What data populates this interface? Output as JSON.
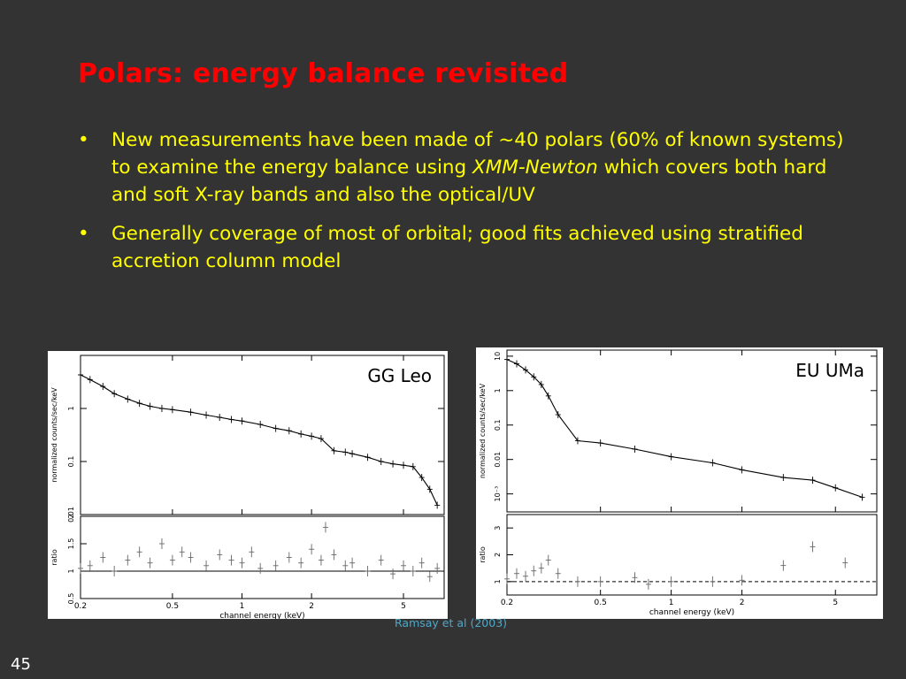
{
  "slide": {
    "title": "Polars: energy balance revisited",
    "bullet1_pre": "New measurements have been made of ~40 polars (60% of known systems) to examine the energy balance using ",
    "bullet1_italic": "XMM-Newton",
    "bullet1_post": " which covers both hard and soft X-ray bands and also the optical/UV",
    "bullet2": "Generally coverage of most of orbital; good fits achieved using stratified accretion column model",
    "bullet_glyph": "•",
    "citation": "Ramsay et al (2003)",
    "page_number": "45"
  },
  "chart_data": [
    {
      "type": "scatter",
      "object_label": "GG Leo",
      "x_scale": "log",
      "xlabel": "channel energy (keV)",
      "xlim": [
        0.2,
        7.5
      ],
      "x_ticks": [
        "0.2",
        "0.5",
        "1",
        "2",
        "5"
      ],
      "top": {
        "ylabel": "normalized counts/sec/keV",
        "y_scale": "log",
        "ylim": [
          0.01,
          10
        ],
        "y_ticks": [
          "0.01",
          "0.1",
          "1"
        ],
        "data": [
          [
            0.2,
            4.3
          ],
          [
            0.22,
            3.5
          ],
          [
            0.25,
            2.6
          ],
          [
            0.28,
            1.9
          ],
          [
            0.32,
            1.5
          ],
          [
            0.36,
            1.25
          ],
          [
            0.4,
            1.1
          ],
          [
            0.45,
            1.0
          ],
          [
            0.5,
            0.95
          ],
          [
            0.6,
            0.85
          ],
          [
            0.7,
            0.75
          ],
          [
            0.8,
            0.68
          ],
          [
            0.9,
            0.62
          ],
          [
            1.0,
            0.58
          ],
          [
            1.2,
            0.5
          ],
          [
            1.4,
            0.42
          ],
          [
            1.6,
            0.38
          ],
          [
            1.8,
            0.33
          ],
          [
            2.0,
            0.3
          ],
          [
            2.2,
            0.27
          ],
          [
            2.5,
            0.16
          ],
          [
            2.8,
            0.15
          ],
          [
            3.0,
            0.14
          ],
          [
            3.5,
            0.12
          ],
          [
            4.0,
            0.1
          ],
          [
            4.5,
            0.09
          ],
          [
            5.0,
            0.085
          ],
          [
            5.5,
            0.08
          ],
          [
            6.0,
            0.05
          ],
          [
            6.5,
            0.03
          ],
          [
            7.0,
            0.015
          ]
        ]
      },
      "bottom": {
        "ylabel": "ratio",
        "y_scale": "linear",
        "ylim": [
          0.5,
          2.0
        ],
        "y_ticks": [
          "0.5",
          "1",
          "1.5",
          "2"
        ],
        "ref_line": 1,
        "data": [
          [
            0.2,
            1.05
          ],
          [
            0.22,
            1.1
          ],
          [
            0.25,
            1.25
          ],
          [
            0.28,
            1.0
          ],
          [
            0.32,
            1.2
          ],
          [
            0.36,
            1.35
          ],
          [
            0.4,
            1.15
          ],
          [
            0.45,
            1.5
          ],
          [
            0.5,
            1.2
          ],
          [
            0.55,
            1.35
          ],
          [
            0.6,
            1.25
          ],
          [
            0.7,
            1.1
          ],
          [
            0.8,
            1.3
          ],
          [
            0.9,
            1.2
          ],
          [
            1.0,
            1.15
          ],
          [
            1.1,
            1.35
          ],
          [
            1.2,
            1.05
          ],
          [
            1.4,
            1.1
          ],
          [
            1.6,
            1.25
          ],
          [
            1.8,
            1.15
          ],
          [
            2.0,
            1.4
          ],
          [
            2.2,
            1.2
          ],
          [
            2.3,
            1.8
          ],
          [
            2.5,
            1.3
          ],
          [
            2.8,
            1.1
          ],
          [
            3.0,
            1.15
          ],
          [
            3.5,
            1.0
          ],
          [
            4.0,
            1.2
          ],
          [
            4.5,
            0.95
          ],
          [
            5.0,
            1.1
          ],
          [
            5.5,
            1.0
          ],
          [
            6.0,
            1.15
          ],
          [
            6.5,
            0.9
          ],
          [
            7.0,
            1.05
          ]
        ]
      }
    },
    {
      "type": "scatter",
      "object_label": "EU UMa",
      "x_scale": "log",
      "xlabel": "channel energy (keV)",
      "xlim": [
        0.2,
        7.5
      ],
      "x_ticks": [
        "0.2",
        "0.5",
        "1",
        "2",
        "5"
      ],
      "top": {
        "ylabel": "normalized counts/sec/keV",
        "y_scale": "log",
        "ylim": [
          0.0003,
          15
        ],
        "y_ticks": [
          "10⁻³",
          "0.01",
          "0.1",
          "1",
          "10"
        ],
        "data": [
          [
            0.2,
            8
          ],
          [
            0.22,
            6
          ],
          [
            0.24,
            4
          ],
          [
            0.26,
            2.5
          ],
          [
            0.28,
            1.5
          ],
          [
            0.3,
            0.7
          ],
          [
            0.33,
            0.2
          ],
          [
            0.4,
            0.035
          ],
          [
            0.5,
            0.03
          ],
          [
            0.7,
            0.02
          ],
          [
            1.0,
            0.012
          ],
          [
            1.5,
            0.008
          ],
          [
            2.0,
            0.005
          ],
          [
            3.0,
            0.003
          ],
          [
            4.0,
            0.0025
          ],
          [
            5.0,
            0.0015
          ],
          [
            6.5,
            0.0008
          ]
        ]
      },
      "bottom": {
        "ylabel": "ratio",
        "y_scale": "linear",
        "ylim": [
          0.5,
          3.5
        ],
        "y_ticks": [
          "1",
          "2",
          "3"
        ],
        "ref_line": 1,
        "data": [
          [
            0.2,
            1.1
          ],
          [
            0.22,
            1.3
          ],
          [
            0.24,
            1.2
          ],
          [
            0.26,
            1.4
          ],
          [
            0.28,
            1.5
          ],
          [
            0.3,
            1.8
          ],
          [
            0.33,
            1.3
          ],
          [
            0.4,
            1.0
          ],
          [
            0.5,
            1.0
          ],
          [
            0.7,
            1.15
          ],
          [
            0.8,
            0.9
          ],
          [
            1.0,
            1.0
          ],
          [
            1.5,
            1.0
          ],
          [
            2.0,
            1.05
          ],
          [
            3.0,
            1.6
          ],
          [
            4.0,
            2.3
          ],
          [
            5.5,
            1.7
          ]
        ]
      }
    }
  ]
}
